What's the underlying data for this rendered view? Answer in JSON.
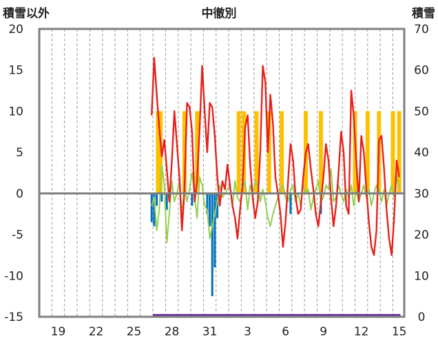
{
  "chart_data": {
    "type": "line",
    "title": "中徹別",
    "ylabel_left": "積雪以外",
    "ylabel_right": "積雪",
    "ylim_left": [
      -15,
      20
    ],
    "ylim_right": [
      0,
      70
    ],
    "y_ticks_left": [
      "20",
      "15",
      "10",
      "5",
      "0",
      "-5",
      "-10",
      "-15"
    ],
    "y_ticks_right": [
      "70",
      "60",
      "50",
      "40",
      "30",
      "20",
      "10",
      "0"
    ],
    "x_ticks": [
      "19",
      "22",
      "25",
      "28",
      "31",
      "3",
      "6",
      "9",
      "12",
      "15"
    ],
    "x_range_days": [
      0,
      28.9
    ],
    "grid": "vertical-dashed",
    "legend": "none",
    "colors": {
      "temperature": "#e8201c",
      "anomaly": "#92d050",
      "precipitation": "#0070c0",
      "sunshine": "#ffc000",
      "snow": "#7030a0"
    },
    "series": [
      {
        "key": "temperature",
        "axis": "left",
        "x": [
          8.9,
          9.1,
          9.3,
          9.5,
          9.7,
          9.9,
          10.1,
          10.3,
          10.5,
          10.7,
          10.9,
          11.1,
          11.3,
          11.5,
          11.7,
          11.9,
          12.1,
          12.3,
          12.5,
          12.7,
          12.9,
          13.1,
          13.3,
          13.5,
          13.7,
          13.9,
          14.1,
          14.3,
          14.5,
          14.7,
          14.9,
          15.1,
          15.3,
          15.5,
          15.7,
          15.9,
          16.1,
          16.3,
          16.5,
          16.7,
          16.9,
          17.1,
          17.3,
          17.5,
          17.7,
          17.9,
          18.1,
          18.3,
          18.5,
          18.7,
          18.9,
          19.1,
          19.3,
          19.5,
          19.7,
          19.9,
          20.1,
          20.3,
          20.5,
          20.7,
          20.9,
          21.1,
          21.3,
          21.5,
          21.7,
          21.9,
          22.1,
          22.3,
          22.5,
          22.7,
          22.9,
          23.1,
          23.3,
          23.5,
          23.7,
          23.9,
          24.1,
          24.3,
          24.5,
          24.7,
          24.9,
          25.1,
          25.3,
          25.5,
          25.7,
          25.9,
          26.1,
          26.3,
          26.5,
          26.7,
          26.9,
          27.1,
          27.3,
          27.5,
          27.7,
          27.9,
          28.1,
          28.3,
          28.5
        ],
        "values": [
          9.5,
          16.5,
          12.0,
          8.0,
          4.5,
          6.5,
          3.0,
          -1.0,
          4.0,
          10.0,
          6.0,
          2.0,
          -4.5,
          0.5,
          11.0,
          10.5,
          7.5,
          -1.0,
          1.5,
          8.0,
          15.5,
          10.0,
          5.0,
          11.0,
          10.5,
          7.0,
          2.0,
          -1.5,
          1.5,
          0.5,
          3.5,
          1.0,
          -1.5,
          -3.0,
          -5.5,
          -2.0,
          1.0,
          8.0,
          9.5,
          3.5,
          -0.5,
          -3.0,
          -1.0,
          5.0,
          15.5,
          13.5,
          5.0,
          12.0,
          8.5,
          2.0,
          0.0,
          -2.5,
          -6.5,
          -3.5,
          1.5,
          6.0,
          4.0,
          -0.5,
          -2.5,
          -2.0,
          2.0,
          5.0,
          6.0,
          3.0,
          0.5,
          -2.5,
          -4.0,
          -1.0,
          2.0,
          6.0,
          4.0,
          -0.5,
          -4.0,
          -1.5,
          2.5,
          7.5,
          5.0,
          -1.5,
          -2.5,
          12.5,
          9.5,
          4.0,
          -1.0,
          7.0,
          5.0,
          0.5,
          -3.5,
          -6.5,
          -7.5,
          -4.5,
          6.5,
          7.0,
          3.0,
          -2.0,
          -5.5,
          -7.5,
          -3.0,
          4.0,
          2.0
        ]
      },
      {
        "key": "anomaly",
        "axis": "left",
        "x": [
          8.9,
          9.1,
          9.3,
          9.5,
          9.7,
          9.9,
          10.1,
          10.3,
          10.5,
          10.7,
          10.9,
          11.1,
          11.3,
          11.5,
          11.7,
          11.9,
          12.1,
          12.3,
          12.5,
          12.7,
          12.9,
          13.1,
          13.3,
          13.5,
          13.7,
          13.9,
          14.1,
          14.3,
          14.5,
          14.7,
          14.9,
          15.1,
          15.3,
          15.5,
          15.7,
          15.9,
          16.1,
          16.3,
          16.5,
          16.7,
          16.9,
          17.1,
          17.3,
          17.5,
          17.7,
          17.9,
          18.1,
          18.3,
          18.5,
          18.7,
          18.9,
          19.1,
          19.3,
          19.5,
          19.7,
          19.9,
          20.1,
          20.3,
          20.5,
          20.7,
          20.9,
          21.1,
          21.3,
          21.5,
          21.7,
          21.9,
          22.1,
          22.3,
          22.5,
          22.7,
          22.9,
          23.1,
          23.3,
          23.5,
          23.7,
          23.9,
          24.1,
          24.3,
          24.5,
          24.7,
          24.9,
          25.1,
          25.3,
          25.5,
          25.7,
          25.9,
          26.1,
          26.3,
          26.5,
          26.7,
          26.9,
          27.1,
          27.3,
          27.5,
          27.7,
          27.9,
          28.1,
          28.3,
          28.5
        ],
        "values": [
          -1.5,
          -0.5,
          -4.5,
          -2.0,
          3.5,
          1.0,
          -6.0,
          -2.5,
          1.5,
          -1.0,
          0.0,
          1.5,
          -2.5,
          0.5,
          -1.0,
          0.5,
          2.5,
          -0.5,
          -3.0,
          2.0,
          1.0,
          -1.5,
          -2.0,
          -5.5,
          -4.0,
          -2.5,
          -1.0,
          1.0,
          -0.5,
          0.0,
          0.5,
          1.0,
          -1.5,
          1.5,
          -0.5,
          -1.0,
          0.5,
          1.5,
          -2.0,
          1.0,
          0.0,
          1.5,
          1.0,
          -1.0,
          0.5,
          -1.0,
          -3.0,
          -4.0,
          -2.5,
          -1.5,
          -0.5,
          0.5,
          1.0,
          -0.5,
          -1.0,
          0.5,
          1.0,
          -1.0,
          0.0,
          -1.5,
          1.0,
          0.0,
          0.5,
          -2.0,
          -0.5,
          0.5,
          1.5,
          -1.0,
          -0.5,
          1.0,
          0.5,
          3.0,
          -1.0,
          -0.5,
          1.0,
          0.0,
          -1.0,
          0.5,
          -0.5,
          1.0,
          -1.5,
          0.5,
          -1.0,
          0.0,
          1.0,
          -0.5,
          0.5,
          -1.5,
          0.0,
          1.0,
          0.5,
          -1.0,
          0.5,
          -1.5,
          0.0,
          1.0,
          -0.5,
          2.0,
          0.5
        ]
      }
    ],
    "bars_precipitation": {
      "axis": "left",
      "x": [
        8.9,
        9.1,
        9.3,
        9.7,
        10.1,
        12.1,
        13.3,
        13.5,
        13.7,
        13.9,
        14.1,
        19.9,
        22.3
      ],
      "values": [
        -3.5,
        -4.0,
        -1.5,
        -1.0,
        -2.0,
        -1.5,
        -2.5,
        -4.0,
        -12.5,
        -9.0,
        -3.0,
        -2.5,
        -2.5
      ]
    },
    "bars_sunshine": {
      "axis": "right",
      "x": [
        9.4,
        9.6,
        11.5,
        12.5,
        15.8,
        16.2,
        17.2,
        18.2,
        19.2,
        21.1,
        22.3,
        25.0,
        26.0,
        26.9,
        28.0,
        28.5
      ],
      "values": [
        50,
        50,
        50,
        50,
        50,
        50,
        50,
        50,
        50,
        50,
        50,
        50,
        50,
        50,
        50,
        50
      ]
    },
    "snow_line": {
      "axis": "right",
      "x": [
        9.0,
        28.6
      ],
      "values": [
        0,
        0
      ]
    }
  }
}
